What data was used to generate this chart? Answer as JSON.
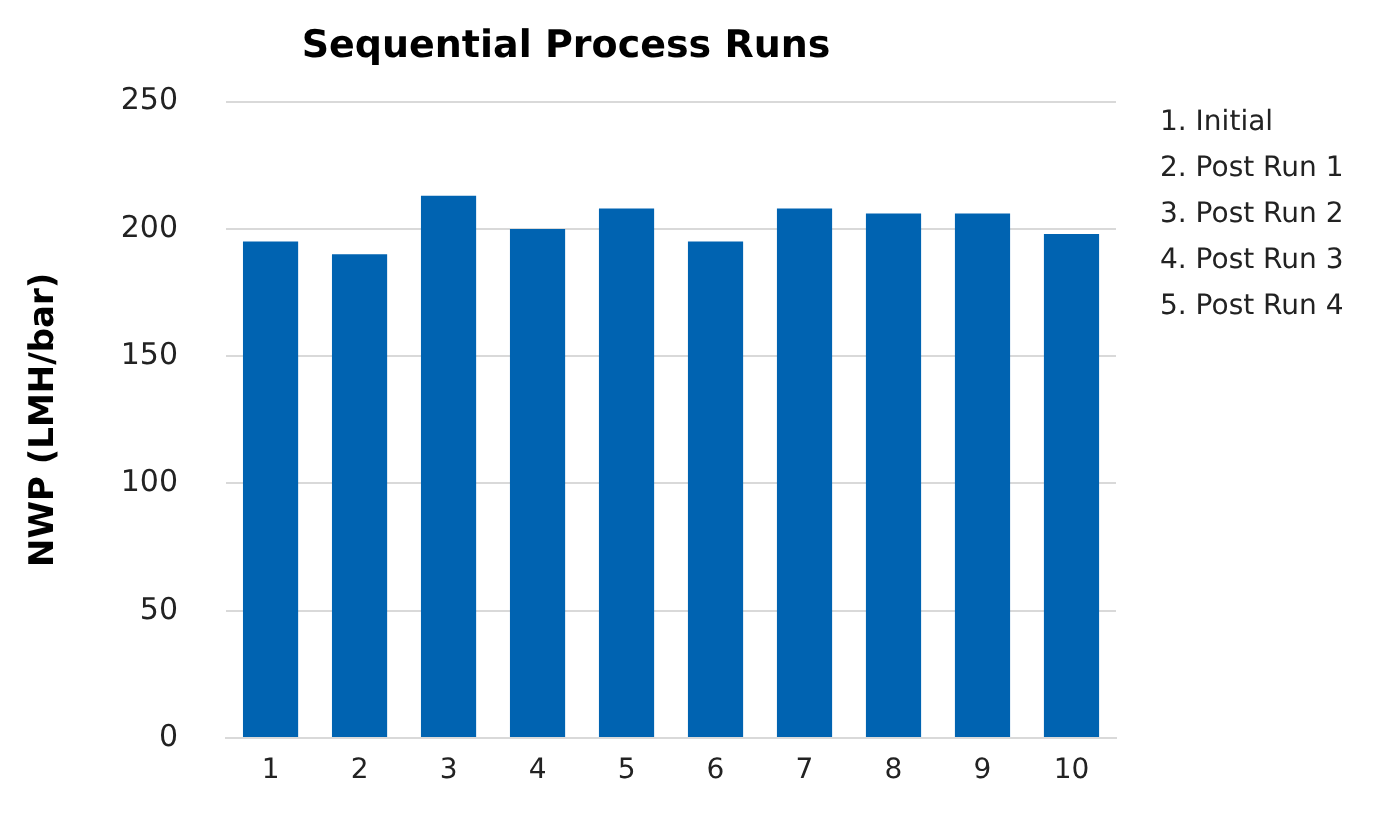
{
  "chart_data": {
    "type": "bar",
    "title": "Sequential Process Runs",
    "ylabel": "NWP (LMH/bar)",
    "categories": [
      "1",
      "2",
      "3",
      "4",
      "5",
      "6",
      "7",
      "8",
      "9",
      "10"
    ],
    "values": [
      195,
      190,
      213,
      200,
      208,
      195,
      208,
      206,
      206,
      198
    ],
    "color": "#0063b1",
    "ylim": [
      0,
      250
    ],
    "yticks": [
      0,
      50,
      100,
      150,
      200,
      250
    ],
    "grid": "y",
    "annotations": [
      "1. Initial",
      "2. Post Run 1",
      "3. Post Run 2",
      "4. Post Run 3",
      "5. Post Run 4"
    ]
  }
}
